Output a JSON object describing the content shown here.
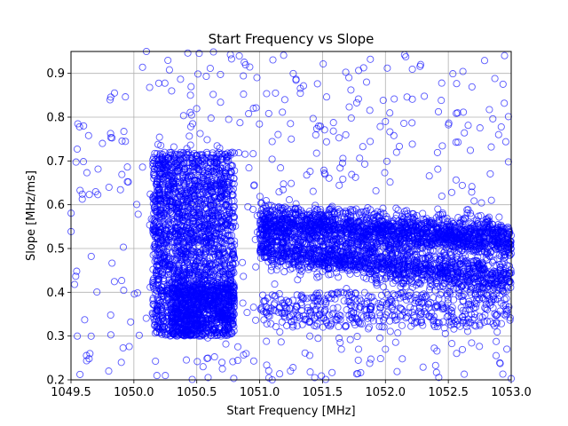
{
  "chart_data": {
    "type": "scatter",
    "title": "Start Frequency vs Slope",
    "xlabel": "Start Frequency [MHz]",
    "ylabel": "Slope [MHz/ms]",
    "xlim": [
      1049.5,
      1053.0
    ],
    "ylim": [
      0.2,
      0.95
    ],
    "x_ticks": [
      "1049.5",
      "1050.0",
      "1050.5",
      "1051.0",
      "1051.5",
      "1052.0",
      "1052.5",
      "1053.0"
    ],
    "y_ticks": [
      "0.2",
      "0.3",
      "0.4",
      "0.5",
      "0.6",
      "0.7",
      "0.8",
      "0.9"
    ],
    "grid": true,
    "legend": "none",
    "marker": "hollow-circle",
    "marker_color": "#0000ff",
    "clusters": [
      {
        "region": "broad low-density background",
        "x_range": [
          1049.5,
          1053.0
        ],
        "y_range": [
          0.2,
          0.95
        ],
        "approx_points": 500
      },
      {
        "region": "dense vertical band",
        "x_range": [
          1050.15,
          1050.55
        ],
        "y_range": [
          0.3,
          0.72
        ],
        "approx_points": 1400
      },
      {
        "region": "secondary vertical band",
        "x_range": [
          1050.55,
          1050.8
        ],
        "y_range": [
          0.33,
          0.72
        ],
        "approx_points": 700
      },
      {
        "region": "low dense cluster",
        "x_range": [
          1050.3,
          1050.8
        ],
        "y_range": [
          0.3,
          0.42
        ],
        "approx_points": 700
      },
      {
        "region": "upper sloping band",
        "x_range": [
          1051.0,
          1053.0
        ],
        "y_center_start": 0.56,
        "y_center_end": 0.52,
        "approx_points": 1800
      },
      {
        "region": "lower sloping band",
        "x_range": [
          1051.0,
          1053.0
        ],
        "y_center_start": 0.5,
        "y_center_end": 0.43,
        "approx_points": 1300
      },
      {
        "region": "bottom sparse band",
        "x_range": [
          1051.0,
          1053.0
        ],
        "y_range": [
          0.32,
          0.4
        ],
        "approx_points": 450
      }
    ],
    "outliers": [
      {
        "x": 1050.1,
        "y": 0.95
      },
      {
        "x": 1051.85,
        "y": 0.88
      },
      {
        "x": 1050.3,
        "y": 0.86
      },
      {
        "x": 1050.45,
        "y": 0.85
      },
      {
        "x": 1050.95,
        "y": 0.82
      },
      {
        "x": 1051.2,
        "y": 0.84
      },
      {
        "x": 1052.0,
        "y": 0.79
      },
      {
        "x": 1049.6,
        "y": 0.78
      },
      {
        "x": 1052.9,
        "y": 0.76
      },
      {
        "x": 1049.75,
        "y": 0.74
      },
      {
        "x": 1050.25,
        "y": 0.21
      },
      {
        "x": 1049.8,
        "y": 0.22
      },
      {
        "x": 1050.55,
        "y": 0.23
      },
      {
        "x": 1049.9,
        "y": 0.24
      },
      {
        "x": 1050.7,
        "y": 0.24
      },
      {
        "x": 1049.65,
        "y": 0.26
      },
      {
        "x": 1051.65,
        "y": 0.27
      },
      {
        "x": 1052.0,
        "y": 0.27
      },
      {
        "x": 1049.55,
        "y": 0.3
      },
      {
        "x": 1051.1,
        "y": 0.2
      }
    ]
  }
}
